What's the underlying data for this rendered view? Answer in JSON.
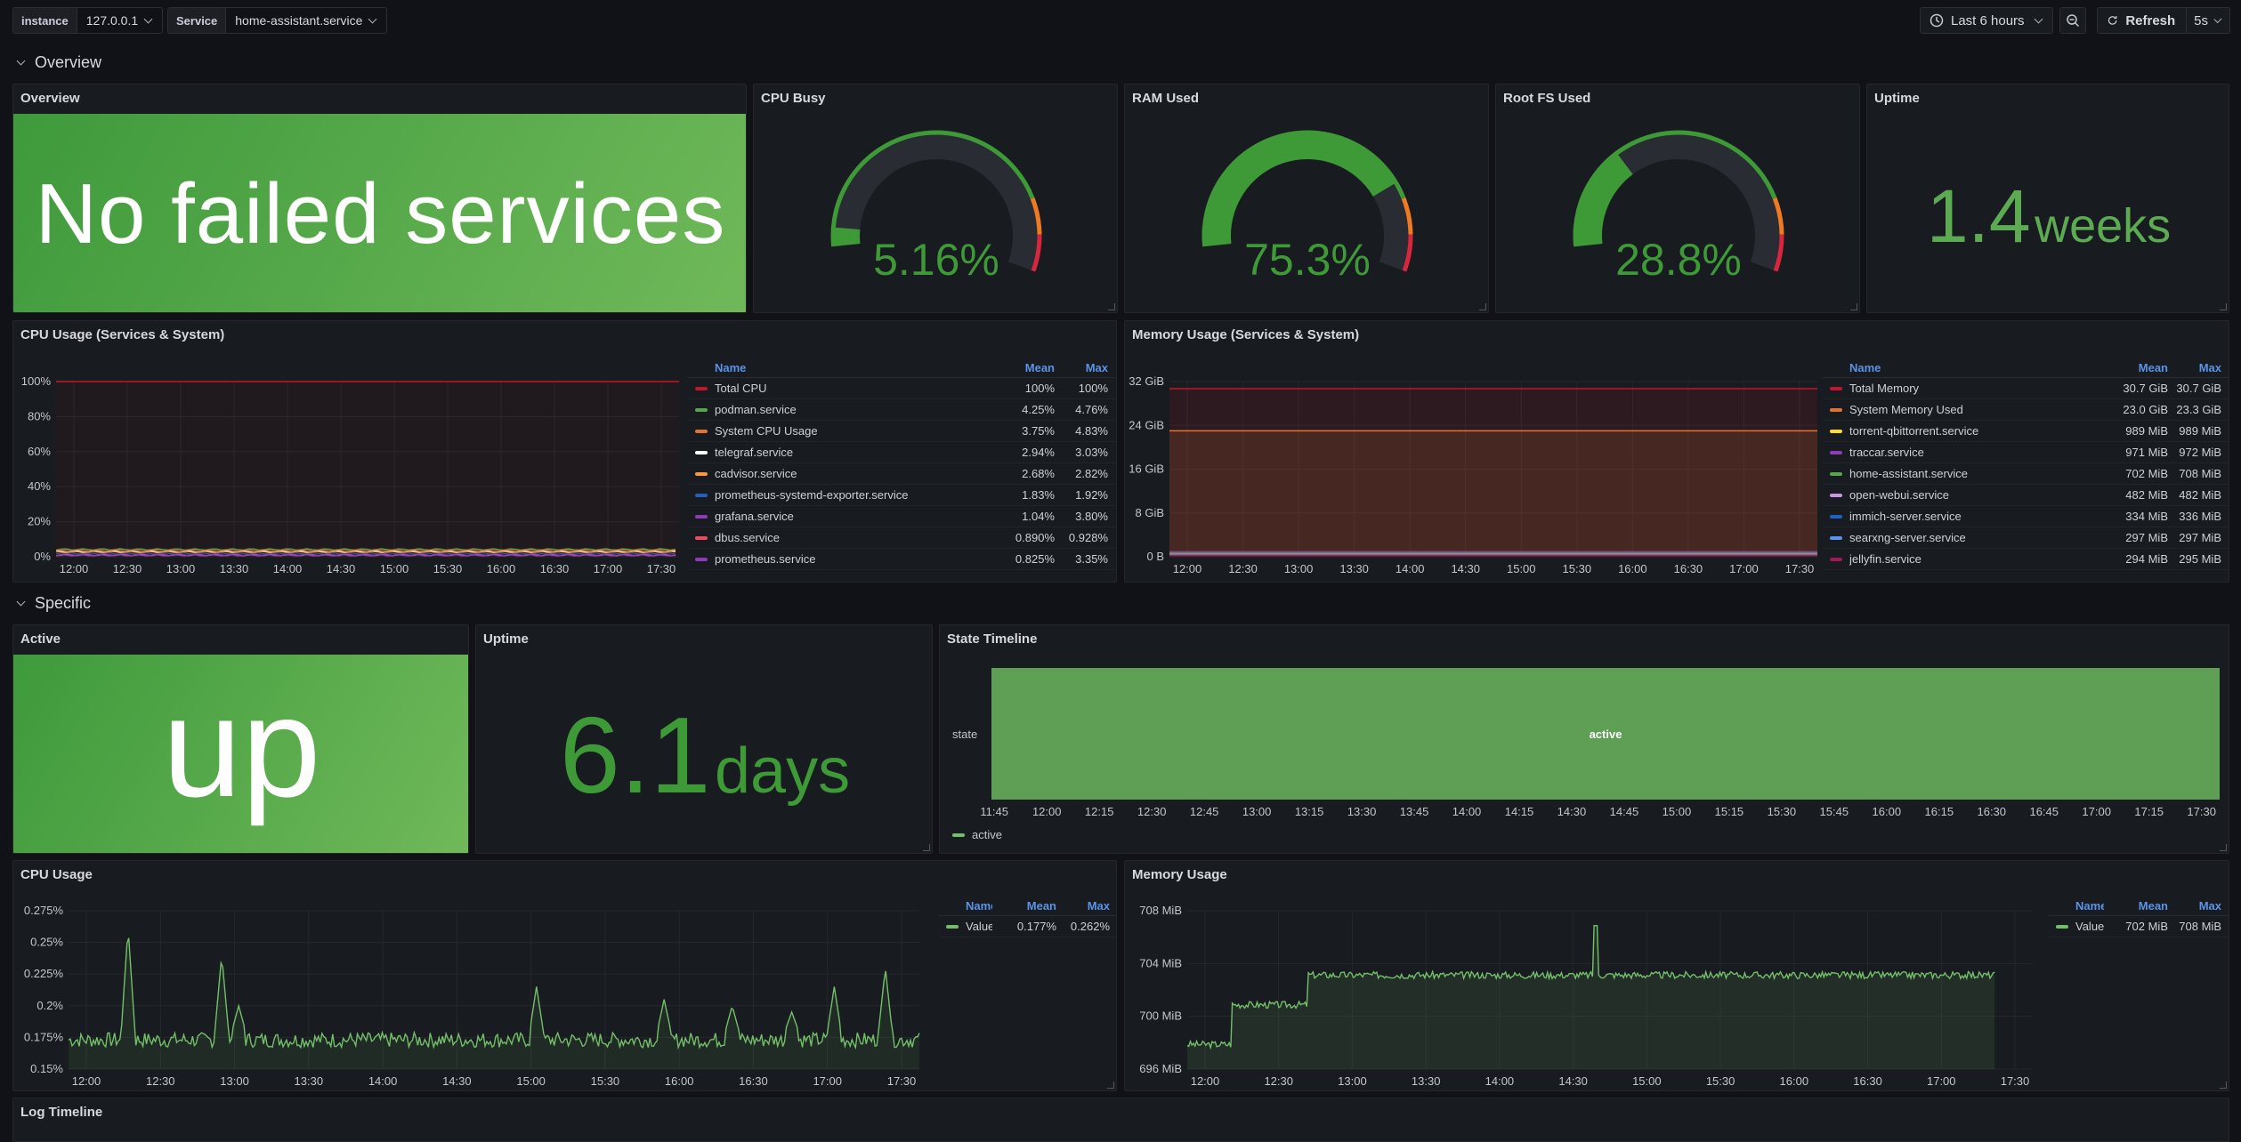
{
  "variables": [
    {
      "label": "instance",
      "value": "127.0.0.1"
    },
    {
      "label": "Service",
      "value": "home-assistant.service"
    }
  ],
  "toolbar": {
    "time_range": "Last 6 hours",
    "refresh": "Refresh",
    "interval": "5s"
  },
  "rows": {
    "overview": "Overview",
    "specific": "Specific"
  },
  "overview_panel": {
    "title": "Overview",
    "text": "No failed services"
  },
  "gauges": [
    {
      "title": "CPU Busy",
      "value": "5.16%",
      "fraction": 0.0516
    },
    {
      "title": "RAM Used",
      "value": "75.3%",
      "fraction": 0.753
    },
    {
      "title": "Root FS Used",
      "value": "28.8%",
      "fraction": 0.288
    }
  ],
  "uptime_overview": {
    "title": "Uptime",
    "number": "1.4",
    "unit": "weeks"
  },
  "cpu_usage_all": {
    "title": "CPU Usage (Services & System)",
    "legend_headers": {
      "name": "Name",
      "mean": "Mean",
      "max": "Max"
    },
    "legend": [
      {
        "name": "Total CPU",
        "mean": "100%",
        "max": "100%",
        "color": "#c4162a"
      },
      {
        "name": "podman.service",
        "mean": "4.25%",
        "max": "4.76%",
        "color": "#56a64b"
      },
      {
        "name": "System CPU Usage",
        "mean": "3.75%",
        "max": "4.83%",
        "color": "#e0752d"
      },
      {
        "name": "telegraf.service",
        "mean": "2.94%",
        "max": "3.03%",
        "color": "#ffffff"
      },
      {
        "name": "cadvisor.service",
        "mean": "2.68%",
        "max": "2.82%",
        "color": "#ff9830"
      },
      {
        "name": "prometheus-systemd-exporter.service",
        "mean": "1.83%",
        "max": "1.92%",
        "color": "#1f60c4"
      },
      {
        "name": "grafana.service",
        "mean": "1.04%",
        "max": "3.80%",
        "color": "#8f3bb8"
      },
      {
        "name": "dbus.service",
        "mean": "0.890%",
        "max": "0.928%",
        "color": "#f2495c"
      },
      {
        "name": "prometheus.service",
        "mean": "0.825%",
        "max": "3.35%",
        "color": "#8f3bb8"
      }
    ],
    "y_ticks": [
      "100%",
      "80%",
      "60%",
      "40%",
      "20%",
      "0%"
    ],
    "x_ticks": [
      "12:00",
      "12:30",
      "13:00",
      "13:30",
      "14:00",
      "14:30",
      "15:00",
      "15:30",
      "16:00",
      "16:30",
      "17:00",
      "17:30"
    ]
  },
  "memory_usage_all": {
    "title": "Memory Usage (Services & System)",
    "legend_headers": {
      "name": "Name",
      "mean": "Mean",
      "max": "Max"
    },
    "legend": [
      {
        "name": "Total Memory",
        "mean": "30.7 GiB",
        "max": "30.7 GiB",
        "color": "#c4162a"
      },
      {
        "name": "System Memory Used",
        "mean": "23.0 GiB",
        "max": "23.3 GiB",
        "color": "#e0752d"
      },
      {
        "name": "torrent-qbittorrent.service",
        "mean": "989 MiB",
        "max": "989 MiB",
        "color": "#fade2a"
      },
      {
        "name": "traccar.service",
        "mean": "971 MiB",
        "max": "972 MiB",
        "color": "#8f3bb8"
      },
      {
        "name": "home-assistant.service",
        "mean": "702 MiB",
        "max": "708 MiB",
        "color": "#56a64b"
      },
      {
        "name": "open-webui.service",
        "mean": "482 MiB",
        "max": "482 MiB",
        "color": "#ca95e5"
      },
      {
        "name": "immich-server.service",
        "mean": "334 MiB",
        "max": "336 MiB",
        "color": "#1f60c4"
      },
      {
        "name": "searxng-server.service",
        "mean": "297 MiB",
        "max": "297 MiB",
        "color": "#5794f2"
      },
      {
        "name": "jellyfin.service",
        "mean": "294 MiB",
        "max": "295 MiB",
        "color": "#a0185a"
      }
    ],
    "y_ticks": [
      "32 GiB",
      "24 GiB",
      "16 GiB",
      "8 GiB",
      "0 B"
    ],
    "x_ticks": [
      "12:00",
      "12:30",
      "13:00",
      "13:30",
      "14:00",
      "14:30",
      "15:00",
      "15:30",
      "16:00",
      "16:30",
      "17:00",
      "17:30"
    ]
  },
  "active": {
    "title": "Active",
    "text": "up"
  },
  "uptime_specific": {
    "title": "Uptime",
    "number": "6.1",
    "unit": "days"
  },
  "state_timeline": {
    "title": "State Timeline",
    "row_label": "state",
    "state": "active",
    "legend": "active",
    "x_ticks": [
      "11:45",
      "12:00",
      "12:15",
      "12:30",
      "12:45",
      "13:00",
      "13:15",
      "13:30",
      "13:45",
      "14:00",
      "14:15",
      "14:30",
      "14:45",
      "15:00",
      "15:15",
      "15:30",
      "15:45",
      "16:00",
      "16:15",
      "16:30",
      "16:45",
      "17:00",
      "17:15",
      "17:30"
    ]
  },
  "cpu_usage": {
    "title": "CPU Usage",
    "legend_headers": {
      "name": "Name",
      "mean": "Mean",
      "max": "Max"
    },
    "legend": [
      {
        "name": "Value",
        "mean": "0.177%",
        "max": "0.262%",
        "color": "#73bf69"
      }
    ],
    "y_ticks": [
      "0.275%",
      "0.25%",
      "0.225%",
      "0.2%",
      "0.175%",
      "0.15%"
    ],
    "x_ticks": [
      "12:00",
      "12:30",
      "13:00",
      "13:30",
      "14:00",
      "14:30",
      "15:00",
      "15:30",
      "16:00",
      "16:30",
      "17:00",
      "17:30"
    ]
  },
  "memory_usage": {
    "title": "Memory Usage",
    "legend_headers": {
      "name": "Name",
      "mean": "Mean",
      "max": "Max"
    },
    "legend": [
      {
        "name": "Value",
        "mean": "702 MiB",
        "max": "708 MiB",
        "color": "#73bf69"
      }
    ],
    "y_ticks": [
      "708 MiB",
      "704 MiB",
      "700 MiB",
      "696 MiB"
    ],
    "x_ticks": [
      "12:00",
      "12:30",
      "13:00",
      "13:30",
      "14:00",
      "14:30",
      "15:00",
      "15:30",
      "16:00",
      "16:30",
      "17:00",
      "17:30"
    ]
  },
  "log_timeline": {
    "title": "Log Timeline"
  }
}
